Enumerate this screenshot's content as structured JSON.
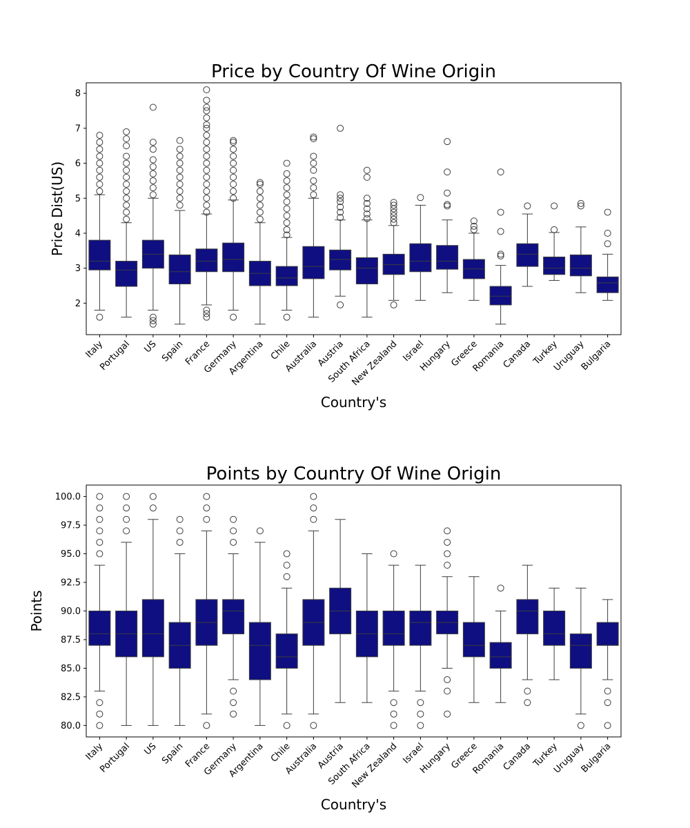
{
  "chart_data": [
    {
      "type": "box",
      "title": "Price by Country Of Wine Origin",
      "xlabel": "Country's",
      "ylabel": "Price Dist(US)",
      "ylim": [
        1.1,
        8.3
      ],
      "yticks": [
        2,
        3,
        4,
        5,
        6,
        7,
        8
      ],
      "ytick_labels": [
        "2",
        "3",
        "4",
        "5",
        "6",
        "7",
        "8"
      ],
      "box_color": "#0f0f82",
      "categories": [
        "Italy",
        "Portugal",
        "US",
        "Spain",
        "France",
        "Germany",
        "Argentina",
        "Chile",
        "Australia",
        "Austria",
        "South Africa",
        "New Zealand",
        "Israel",
        "Hungary",
        "Greece",
        "Romania",
        "Canada",
        "Turkey",
        "Uruguay",
        "Bulgaria"
      ],
      "boxes": [
        {
          "whislo": 1.8,
          "q1": 2.95,
          "med": 3.2,
          "q3": 3.8,
          "whishi": 5.1,
          "fliers": [
            1.6,
            5.2,
            5.4,
            5.6,
            5.8,
            6.0,
            6.2,
            6.4,
            6.6,
            6.8
          ]
        },
        {
          "whislo": 1.6,
          "q1": 2.48,
          "med": 2.95,
          "q3": 3.2,
          "whishi": 4.3,
          "fliers": [
            4.4,
            4.6,
            4.8,
            5.0,
            5.2,
            5.4,
            5.6,
            5.8,
            6.0,
            6.2,
            6.5,
            6.7,
            6.9
          ]
        },
        {
          "whislo": 1.8,
          "q1": 3.0,
          "med": 3.4,
          "q3": 3.8,
          "whishi": 5.0,
          "fliers": [
            1.4,
            1.5,
            1.6,
            5.1,
            5.3,
            5.5,
            5.7,
            5.9,
            6.1,
            6.4,
            6.6,
            7.6
          ]
        },
        {
          "whislo": 1.4,
          "q1": 2.55,
          "med": 2.9,
          "q3": 3.38,
          "whishi": 4.65,
          "fliers": [
            4.8,
            5.0,
            5.2,
            5.4,
            5.6,
            5.8,
            6.0,
            6.2,
            6.4,
            6.65
          ]
        },
        {
          "whislo": 1.95,
          "q1": 2.9,
          "med": 3.2,
          "q3": 3.55,
          "whishi": 4.55,
          "fliers": [
            1.6,
            1.7,
            1.8,
            4.6,
            4.8,
            5.0,
            5.2,
            5.4,
            5.6,
            5.8,
            6.0,
            6.2,
            6.4,
            6.6,
            6.8,
            7.0,
            7.1,
            7.3,
            7.5,
            7.6,
            7.8,
            8.1
          ]
        },
        {
          "whislo": 1.8,
          "q1": 2.9,
          "med": 3.25,
          "q3": 3.72,
          "whishi": 4.95,
          "fliers": [
            1.6,
            5.0,
            5.2,
            5.4,
            5.6,
            5.8,
            6.0,
            6.2,
            6.4,
            6.6,
            6.65
          ]
        },
        {
          "whislo": 1.4,
          "q1": 2.5,
          "med": 2.85,
          "q3": 3.2,
          "whishi": 4.3,
          "fliers": [
            4.4,
            4.6,
            4.8,
            5.0,
            5.2,
            5.4,
            5.45
          ]
        },
        {
          "whislo": 1.8,
          "q1": 2.5,
          "med": 2.72,
          "q3": 3.05,
          "whishi": 3.88,
          "fliers": [
            1.6,
            3.95,
            4.1,
            4.3,
            4.5,
            4.7,
            4.9,
            5.1,
            5.3,
            5.5,
            5.7,
            6.0
          ]
        },
        {
          "whislo": 1.6,
          "q1": 2.7,
          "med": 3.05,
          "q3": 3.62,
          "whishi": 5.0,
          "fliers": [
            5.1,
            5.3,
            5.5,
            5.8,
            6.0,
            6.2,
            6.7,
            6.75
          ]
        },
        {
          "whislo": 2.2,
          "q1": 2.95,
          "med": 3.25,
          "q3": 3.52,
          "whishi": 4.38,
          "fliers": [
            1.95,
            4.45,
            4.6,
            4.75,
            4.9,
            5.0,
            5.1,
            7.0
          ]
        },
        {
          "whislo": 1.6,
          "q1": 2.55,
          "med": 3.0,
          "q3": 3.3,
          "whishi": 4.38,
          "fliers": [
            4.42,
            4.55,
            4.7,
            4.85,
            5.0,
            5.6,
            5.8
          ]
        },
        {
          "whislo": 2.08,
          "q1": 2.82,
          "med": 3.1,
          "q3": 3.4,
          "whishi": 4.22,
          "fliers": [
            1.95,
            4.3,
            4.4,
            4.5,
            4.6,
            4.7,
            4.8,
            4.88
          ]
        },
        {
          "whislo": 2.08,
          "q1": 2.9,
          "med": 3.2,
          "q3": 3.7,
          "whishi": 4.8,
          "fliers": [
            5.02
          ]
        },
        {
          "whislo": 2.3,
          "q1": 2.97,
          "med": 3.2,
          "q3": 3.65,
          "whishi": 4.38,
          "fliers": [
            4.78,
            4.82,
            5.15,
            5.75,
            6.62
          ]
        },
        {
          "whislo": 2.08,
          "q1": 2.7,
          "med": 2.98,
          "q3": 3.25,
          "whishi": 4.0,
          "fliers": [
            4.1,
            4.2,
            4.35
          ]
        },
        {
          "whislo": 1.4,
          "q1": 1.95,
          "med": 2.2,
          "q3": 2.48,
          "whishi": 3.08,
          "fliers": [
            3.35,
            3.4,
            4.05,
            4.6,
            5.75
          ]
        },
        {
          "whislo": 2.48,
          "q1": 3.05,
          "med": 3.4,
          "q3": 3.7,
          "whishi": 4.55,
          "fliers": [
            4.78
          ]
        },
        {
          "whislo": 2.65,
          "q1": 2.82,
          "med": 3.0,
          "q3": 3.32,
          "whishi": 4.02,
          "fliers": [
            4.1,
            4.78
          ]
        },
        {
          "whislo": 2.3,
          "q1": 2.78,
          "med": 3.0,
          "q3": 3.38,
          "whishi": 4.18,
          "fliers": [
            4.78,
            4.85
          ]
        },
        {
          "whislo": 2.08,
          "q1": 2.3,
          "med": 2.58,
          "q3": 2.75,
          "whishi": 3.4,
          "fliers": [
            3.7,
            4.0,
            4.6
          ]
        }
      ]
    },
    {
      "type": "box",
      "title": "Points by Country Of Wine Origin",
      "xlabel": "Country's",
      "ylabel": "Points",
      "ylim": [
        79.0,
        101.0
      ],
      "yticks": [
        80.0,
        82.5,
        85.0,
        87.5,
        90.0,
        92.5,
        95.0,
        97.5,
        100.0
      ],
      "ytick_labels": [
        "80.0",
        "82.5",
        "85.0",
        "87.5",
        "90.0",
        "92.5",
        "95.0",
        "97.5",
        "100.0"
      ],
      "box_color": "#0f0f82",
      "categories": [
        "Italy",
        "Portugal",
        "US",
        "Spain",
        "France",
        "Germany",
        "Argentina",
        "Chile",
        "Australia",
        "Austria",
        "South Africa",
        "New Zealand",
        "Israel",
        "Hungary",
        "Greece",
        "Romania",
        "Canada",
        "Turkey",
        "Uruguay",
        "Bulgaria"
      ],
      "boxes": [
        {
          "whislo": 83,
          "q1": 87,
          "med": 88,
          "q3": 90,
          "whishi": 94,
          "fliers": [
            80,
            81,
            82,
            95,
            96,
            97,
            98,
            99,
            100
          ]
        },
        {
          "whislo": 80,
          "q1": 86,
          "med": 88,
          "q3": 90,
          "whishi": 96,
          "fliers": [
            97,
            98,
            99,
            100
          ]
        },
        {
          "whislo": 80,
          "q1": 86,
          "med": 88,
          "q3": 91,
          "whishi": 98,
          "fliers": [
            99,
            100
          ]
        },
        {
          "whislo": 80,
          "q1": 85,
          "med": 87,
          "q3": 89,
          "whishi": 95,
          "fliers": [
            96,
            97,
            98
          ]
        },
        {
          "whislo": 81,
          "q1": 87,
          "med": 89,
          "q3": 91,
          "whishi": 97,
          "fliers": [
            80,
            98,
            99,
            100
          ]
        },
        {
          "whislo": 84,
          "q1": 88,
          "med": 90,
          "q3": 91,
          "whishi": 95,
          "fliers": [
            81,
            82,
            83,
            96,
            97,
            98
          ]
        },
        {
          "whislo": 80,
          "q1": 84,
          "med": 87,
          "q3": 89,
          "whishi": 96,
          "fliers": [
            97
          ]
        },
        {
          "whislo": 81,
          "q1": 85,
          "med": 86,
          "q3": 88,
          "whishi": 92,
          "fliers": [
            80,
            93,
            94,
            95
          ]
        },
        {
          "whislo": 81,
          "q1": 87,
          "med": 89,
          "q3": 91,
          "whishi": 97,
          "fliers": [
            80,
            98,
            99,
            100
          ]
        },
        {
          "whislo": 82,
          "q1": 88,
          "med": 90,
          "q3": 92,
          "whishi": 98,
          "fliers": []
        },
        {
          "whislo": 82,
          "q1": 86,
          "med": 88,
          "q3": 90,
          "whishi": 95,
          "fliers": []
        },
        {
          "whislo": 83,
          "q1": 87,
          "med": 88,
          "q3": 90,
          "whishi": 94,
          "fliers": [
            80,
            81,
            82,
            95
          ]
        },
        {
          "whislo": 83,
          "q1": 87,
          "med": 89,
          "q3": 90,
          "whishi": 94,
          "fliers": [
            80,
            81,
            82
          ]
        },
        {
          "whislo": 85,
          "q1": 88,
          "med": 89,
          "q3": 90,
          "whishi": 93,
          "fliers": [
            81,
            83,
            84,
            94,
            95,
            96,
            97
          ]
        },
        {
          "whislo": 82,
          "q1": 86,
          "med": 87,
          "q3": 89,
          "whishi": 93,
          "fliers": []
        },
        {
          "whislo": 82,
          "q1": 85,
          "med": 86,
          "q3": 87.25,
          "whishi": 90,
          "fliers": [
            92
          ]
        },
        {
          "whislo": 84,
          "q1": 88,
          "med": 90,
          "q3": 91,
          "whishi": 94,
          "fliers": [
            82,
            83
          ]
        },
        {
          "whislo": 84,
          "q1": 87,
          "med": 88,
          "q3": 90,
          "whishi": 92,
          "fliers": []
        },
        {
          "whislo": 81,
          "q1": 85,
          "med": 87,
          "q3": 88,
          "whishi": 92,
          "fliers": [
            80
          ]
        },
        {
          "whislo": 84,
          "q1": 87,
          "med": 87,
          "q3": 89,
          "whishi": 91,
          "fliers": [
            80,
            82,
            83
          ]
        }
      ]
    }
  ]
}
